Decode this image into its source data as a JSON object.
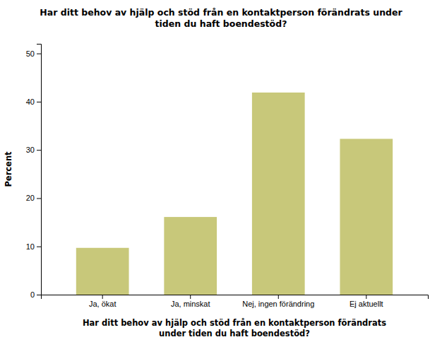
{
  "chart_data": {
    "type": "bar",
    "title": "Har ditt behov av hjälp och stöd från en kontaktperson förändrats under\ntiden du haft boendestöd?",
    "xlabel": "Har ditt behov av hjälp och stöd från en kontaktperson förändrats\nunder tiden du haft boendestöd?",
    "ylabel": "Percent",
    "categories": [
      "Ja, ökat",
      "Ja, minskat",
      "Nej, ingen förändring",
      "Ej aktuellt"
    ],
    "values": [
      9.7,
      16.1,
      41.9,
      32.3
    ],
    "color": "#c8c87a",
    "ylim": [
      0,
      52
    ],
    "yticks": [
      0,
      10,
      20,
      30,
      40,
      50
    ],
    "grid": false
  }
}
